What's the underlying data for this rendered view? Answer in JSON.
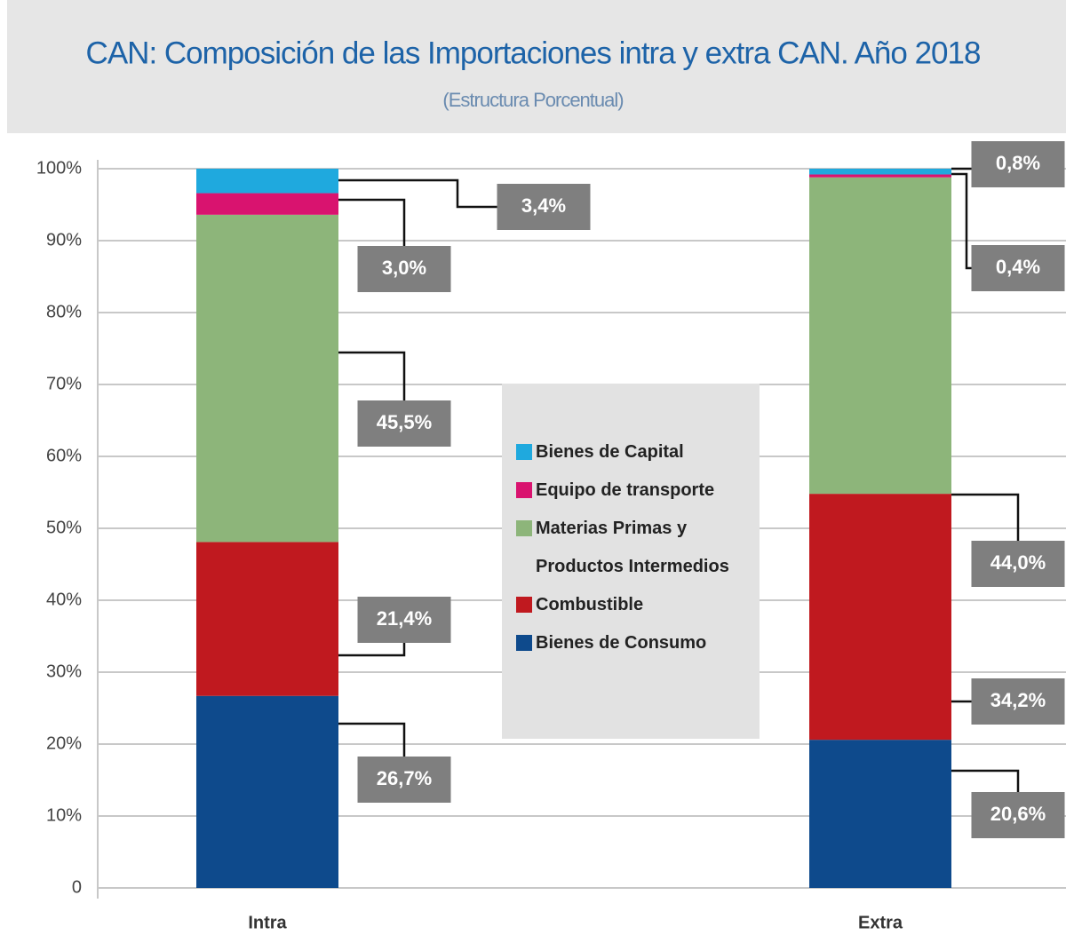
{
  "chart_data": {
    "type": "stacked_bar",
    "title": "CAN: Composición de las Importaciones intra y extra CAN. Año 2018",
    "subtitle": "(Estructura Porcentual)",
    "categories": [
      "Intra",
      "Extra"
    ],
    "series": [
      {
        "name": "Bienes de Consumo",
        "color": "#0e4a8c",
        "values": [
          26.7,
          20.6
        ],
        "value_labels": [
          "26,7%",
          "20,6%"
        ]
      },
      {
        "name": "Combustible",
        "color": "#c0191f",
        "values": [
          21.4,
          34.2
        ],
        "value_labels": [
          "21,4%",
          "34,2%"
        ]
      },
      {
        "name": "Materias Primas y Productos Intermedios",
        "color": "#8db57a",
        "values": [
          45.5,
          44.0
        ],
        "value_labels": [
          "45,5%",
          "44,0%"
        ]
      },
      {
        "name": "Equipo de transporte",
        "color": "#d9136f",
        "values": [
          3.0,
          0.4
        ],
        "value_labels": [
          "3,0%",
          "0,4%"
        ]
      },
      {
        "name": "Bienes de Capital",
        "color": "#1fa9de",
        "values": [
          3.4,
          0.8
        ],
        "value_labels": [
          "3,4%",
          "0,8%"
        ]
      }
    ],
    "ylim": [
      0,
      100
    ],
    "yticks": [
      0,
      {
        "value": 10,
        "label": "10%"
      },
      {
        "value": 20,
        "label": "20%"
      },
      {
        "value": 30,
        "label": "30%"
      },
      {
        "value": 40,
        "label": "40%"
      },
      {
        "value": 50,
        "label": "50%"
      },
      {
        "value": 60,
        "label": "60%"
      },
      {
        "value": 70,
        "label": "70%"
      },
      {
        "value": 80,
        "label": "80%"
      },
      {
        "value": 90,
        "label": "90%"
      },
      {
        "value": 100,
        "label": "100%"
      }
    ],
    "grid": true
  }
}
